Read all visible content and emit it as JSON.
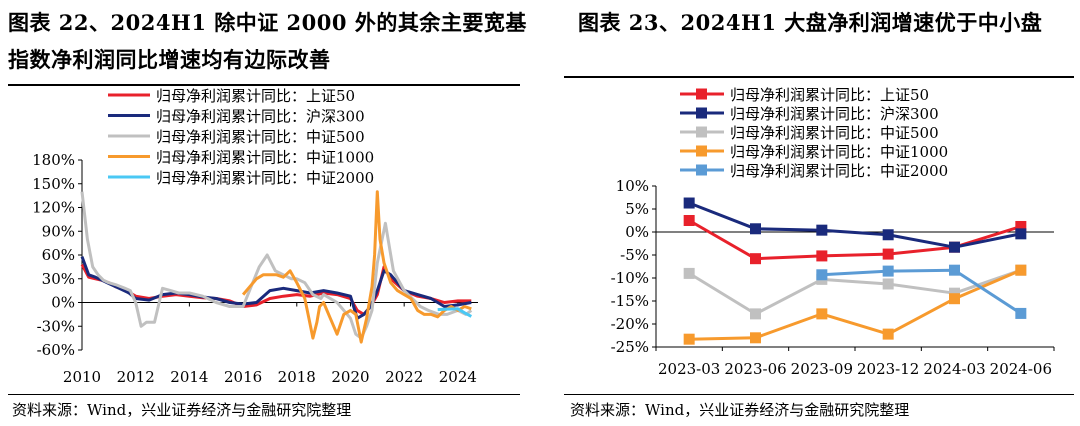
{
  "charts": [
    {
      "figure_title": "图表 22、2024H1 除中证 2000 外的其余主要宽基指数净利润同比增速均有边际改善",
      "source": "资料来源：Wind，兴业证券经济与金融研究院整理"
    },
    {
      "figure_title": "图表 23、2024H1 大盘净利润增速优于中小盘",
      "source": "资料来源：Wind，兴业证券经济与金融研究院整理"
    }
  ],
  "chart_data": [
    {
      "type": "line",
      "title": "图表 22、2024H1 除中证 2000 外的其余主要宽基指数净利润同比增速均有边际改善",
      "xlabel": "",
      "ylabel": "",
      "xlim": [
        2010,
        2024.75
      ],
      "ylim": [
        -60,
        180
      ],
      "x_ticks": [
        "2010",
        "2012",
        "2014",
        "2016",
        "2018",
        "2020",
        "2022",
        "2024"
      ],
      "y_ticks": [
        "180%",
        "150%",
        "120%",
        "90%",
        "60%",
        "30%",
        "0%",
        "-30%",
        "-60%"
      ],
      "legend": "top",
      "series": [
        {
          "name": "归母净利润累计同比：上证50",
          "color": "#e8212b",
          "x": [
            2010,
            2010.25,
            2010.5,
            2010.75,
            2011,
            2011.25,
            2011.5,
            2011.75,
            2012,
            2012.5,
            2013,
            2013.5,
            2014,
            2014.5,
            2015,
            2015.5,
            2016,
            2016.5,
            2017,
            2017.5,
            2018,
            2018.5,
            2019,
            2019.5,
            2020,
            2020.25,
            2020.5,
            2020.75,
            2021,
            2021.25,
            2021.5,
            2022,
            2022.5,
            2023,
            2023.5,
            2024,
            2024.5
          ],
          "y": [
            48,
            32,
            30,
            28,
            25,
            20,
            17,
            13,
            8,
            5,
            8,
            10,
            8,
            6,
            5,
            2,
            -5,
            -3,
            5,
            8,
            10,
            8,
            12,
            10,
            5,
            -10,
            -15,
            -5,
            10,
            45,
            30,
            15,
            8,
            5,
            0,
            2,
            2
          ]
        },
        {
          "name": "归母净利润累计同比：沪深300",
          "color": "#1a2a7c",
          "x": [
            2010,
            2010.25,
            2010.5,
            2010.75,
            2011,
            2011.25,
            2011.5,
            2011.75,
            2012,
            2012.5,
            2013,
            2013.5,
            2014,
            2014.5,
            2015,
            2015.5,
            2016,
            2016.5,
            2017,
            2017.5,
            2018,
            2018.5,
            2019,
            2019.5,
            2020,
            2020.25,
            2020.5,
            2020.75,
            2021,
            2021.25,
            2021.5,
            2022,
            2022.5,
            2023,
            2023.5,
            2024,
            2024.5
          ],
          "y": [
            58,
            35,
            32,
            28,
            24,
            20,
            16,
            12,
            5,
            3,
            10,
            12,
            10,
            7,
            5,
            0,
            -2,
            0,
            15,
            18,
            15,
            12,
            15,
            12,
            8,
            -20,
            -15,
            -5,
            15,
            40,
            35,
            15,
            10,
            5,
            -5,
            -3,
            0
          ]
        },
        {
          "name": "归母净利润累计同比：中证500",
          "color": "#c0c0c0",
          "x": [
            2010,
            2010.2,
            2010.4,
            2010.6,
            2010.8,
            2011,
            2011.3,
            2011.6,
            2011.8,
            2012,
            2012.2,
            2012.4,
            2012.7,
            2013,
            2013.3,
            2013.6,
            2014,
            2014.5,
            2015,
            2015.5,
            2016,
            2016.3,
            2016.6,
            2016.9,
            2017.2,
            2017.5,
            2017.8,
            2018,
            2018.3,
            2018.6,
            2018.9,
            2019,
            2019.5,
            2020,
            2020.2,
            2020.4,
            2020.6,
            2020.8,
            2021,
            2021.3,
            2021.6,
            2022,
            2022.3,
            2022.6,
            2022.9,
            2023.3,
            2023.6,
            2024,
            2024.3,
            2024.5
          ],
          "y": [
            140,
            80,
            45,
            35,
            28,
            25,
            22,
            18,
            15,
            0,
            -30,
            -25,
            -25,
            18,
            15,
            12,
            12,
            8,
            0,
            -5,
            -5,
            20,
            45,
            60,
            40,
            35,
            30,
            30,
            25,
            10,
            5,
            10,
            0,
            -20,
            -40,
            -45,
            -30,
            -10,
            50,
            100,
            40,
            15,
            5,
            -5,
            -10,
            -15,
            -15,
            -10,
            -15,
            -10
          ]
        },
        {
          "name": "归母净利润累计同比：中证1000",
          "color": "#f79a2d",
          "x": [
            2016,
            2016.25,
            2016.5,
            2016.75,
            2017,
            2017.25,
            2017.5,
            2017.75,
            2018,
            2018.15,
            2018.3,
            2018.45,
            2018.6,
            2018.75,
            2018.85,
            2019,
            2019.25,
            2019.5,
            2019.75,
            2020,
            2020.2,
            2020.4,
            2020.6,
            2020.8,
            2020.9,
            2021,
            2021.1,
            2021.25,
            2021.5,
            2021.75,
            2022,
            2022.25,
            2022.5,
            2022.75,
            2023,
            2023.25,
            2023.5,
            2023.75,
            2024,
            2024.25,
            2024.5
          ],
          "y": [
            10,
            20,
            30,
            35,
            35,
            35,
            32,
            40,
            25,
            15,
            5,
            -20,
            -45,
            -25,
            -5,
            0,
            -20,
            -40,
            -15,
            -10,
            -15,
            -50,
            -20,
            20,
            60,
            140,
            80,
            50,
            25,
            15,
            10,
            5,
            -10,
            -15,
            -15,
            -18,
            -10,
            -5,
            -10,
            -5,
            -8
          ]
        },
        {
          "name": "归母净利润累计同比：中证2000",
          "color": "#4ac8f4",
          "x": [
            2023.25,
            2023.5,
            2023.75,
            2024,
            2024.25,
            2024.5
          ],
          "y": [
            -9,
            -8.5,
            -8.2,
            -8,
            -13,
            -17.5
          ]
        }
      ]
    },
    {
      "type": "line",
      "title": "图表 23、2024H1 大盘净利润增速优于中小盘",
      "xlabel": "",
      "ylabel": "",
      "categories": [
        "2023-03",
        "2023-06",
        "2023-09",
        "2023-12",
        "2024-03",
        "2024-06"
      ],
      "ylim": [
        -25,
        10
      ],
      "y_ticks": [
        "10%",
        "5%",
        "0%",
        "-5%",
        "-10%",
        "-15%",
        "-20%",
        "-25%"
      ],
      "legend": "top",
      "series": [
        {
          "name": "归母净利润累计同比：上证50",
          "color": "#e8212b",
          "values": [
            2.5,
            -5.8,
            -5.2,
            -4.8,
            -3.3,
            1.2
          ]
        },
        {
          "name": "归母净利润累计同比：沪深300",
          "color": "#1a2a7c",
          "values": [
            6.3,
            0.7,
            0.4,
            -0.6,
            -3.3,
            -0.4
          ]
        },
        {
          "name": "归母净利润累计同比：中证500",
          "color": "#c0c0c0",
          "values": [
            -9.0,
            -17.8,
            -10.3,
            -11.3,
            -13.3,
            -8.3
          ]
        },
        {
          "name": "归母净利润累计同比：中证1000",
          "color": "#f79a2d",
          "values": [
            -23.3,
            -23.0,
            -17.8,
            -22.2,
            -14.5,
            -8.3
          ]
        },
        {
          "name": "归母净利润累计同比：中证2000",
          "color": "#5b9bd5",
          "values": [
            null,
            null,
            -9.3,
            -8.5,
            -8.3,
            -17.7
          ]
        }
      ]
    }
  ]
}
